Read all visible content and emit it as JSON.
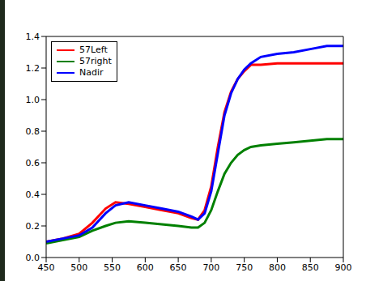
{
  "chart_data": {
    "type": "line",
    "x": [
      450,
      475,
      500,
      520,
      540,
      555,
      575,
      600,
      625,
      650,
      670,
      680,
      690,
      700,
      710,
      720,
      730,
      740,
      750,
      760,
      775,
      800,
      825,
      850,
      875,
      900
    ],
    "series": [
      {
        "name": "57Left",
        "color": "#ff0000",
        "values": [
          0.1,
          0.12,
          0.15,
          0.22,
          0.31,
          0.35,
          0.34,
          0.32,
          0.3,
          0.28,
          0.25,
          0.24,
          0.3,
          0.45,
          0.7,
          0.92,
          1.05,
          1.13,
          1.18,
          1.22,
          1.22,
          1.23,
          1.23,
          1.23,
          1.23,
          1.23
        ]
      },
      {
        "name": "57right",
        "color": "#008000",
        "values": [
          0.09,
          0.11,
          0.13,
          0.17,
          0.2,
          0.22,
          0.23,
          0.22,
          0.21,
          0.2,
          0.19,
          0.19,
          0.22,
          0.3,
          0.42,
          0.53,
          0.6,
          0.65,
          0.68,
          0.7,
          0.71,
          0.72,
          0.73,
          0.74,
          0.75,
          0.75
        ]
      },
      {
        "name": "Nadir",
        "color": "#0000ff",
        "values": [
          0.1,
          0.12,
          0.14,
          0.19,
          0.28,
          0.33,
          0.35,
          0.33,
          0.31,
          0.29,
          0.26,
          0.24,
          0.28,
          0.42,
          0.66,
          0.9,
          1.04,
          1.13,
          1.19,
          1.23,
          1.27,
          1.29,
          1.3,
          1.32,
          1.34,
          1.34
        ]
      }
    ],
    "xlim": [
      450,
      900
    ],
    "xticks": [
      450,
      500,
      550,
      600,
      650,
      700,
      750,
      800,
      850,
      900
    ],
    "ylim": [
      0,
      1.4
    ],
    "yticks": [
      {
        "value": 0,
        "label": "0.0"
      },
      0.2,
      0.4,
      0.6,
      0.8,
      {
        "value": 1,
        "label": "1.0"
      },
      1.2,
      1.4
    ],
    "grid": false,
    "legend": "upper left"
  }
}
